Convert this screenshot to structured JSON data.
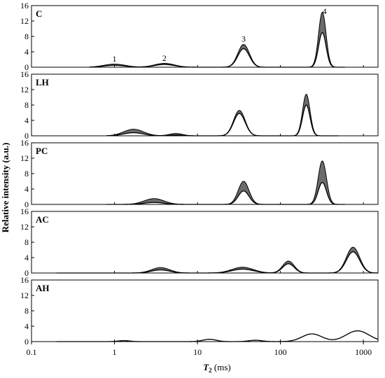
{
  "chart_data": {
    "type": "area",
    "xscale": "log",
    "xlim": [
      0.1,
      1500
    ],
    "xticks": [
      "0.1",
      "1",
      "10",
      "100",
      "1000"
    ],
    "xticks_values": [
      0.1,
      1,
      10,
      100,
      1000
    ],
    "xlabel_main": "T",
    "xlabel_sub": "2",
    "xlabel_unit": " (ms)",
    "ylabel": "Relative intensity (a.u.)",
    "ylim": [
      0,
      16
    ],
    "yticks": [
      "0",
      "4",
      "8",
      "12",
      "16"
    ],
    "fill_color": "#6b6b6b",
    "panels": [
      {
        "label": "C",
        "peaks": [
          {
            "x": 1.0,
            "lower": 0.5,
            "upper": 0.8,
            "width": 0.13
          },
          {
            "x": 4.0,
            "lower": 0.7,
            "upper": 1.0,
            "width": 0.12
          },
          {
            "x": 36,
            "lower": 4.8,
            "upper": 5.9,
            "width": 0.07
          },
          {
            "x": 320,
            "lower": 9.0,
            "upper": 14.3,
            "width": 0.045
          }
        ],
        "annotations": [
          {
            "text": "1",
            "x": 1.0,
            "y": 1.5
          },
          {
            "text": "2",
            "x": 4.0,
            "y": 1.6
          },
          {
            "text": "3",
            "x": 36,
            "y": 6.6
          },
          {
            "text": "4",
            "x": 340,
            "y": 13.8
          }
        ],
        "extent": [
          0.5,
          600
        ]
      },
      {
        "label": "LH",
        "peaks": [
          {
            "x": 1.7,
            "lower": 0.8,
            "upper": 1.7,
            "width": 0.12
          },
          {
            "x": 5.5,
            "lower": 0.2,
            "upper": 0.6,
            "width": 0.08
          },
          {
            "x": 32,
            "lower": 5.8,
            "upper": 6.6,
            "width": 0.07
          },
          {
            "x": 205,
            "lower": 8.0,
            "upper": 10.8,
            "width": 0.045
          }
        ],
        "annotations": [],
        "extent": [
          0.8,
          500
        ]
      },
      {
        "label": "PC",
        "peaks": [
          {
            "x": 3.0,
            "lower": 0.5,
            "upper": 1.5,
            "width": 0.12
          },
          {
            "x": 36,
            "lower": 3.5,
            "upper": 6.0,
            "width": 0.065
          },
          {
            "x": 320,
            "lower": 5.7,
            "upper": 11.3,
            "width": 0.05
          }
        ],
        "annotations": [],
        "extent": [
          0.8,
          600
        ]
      },
      {
        "label": "AC",
        "peaks": [
          {
            "x": 3.6,
            "lower": 0.8,
            "upper": 1.4,
            "width": 0.11
          },
          {
            "x": 35,
            "lower": 1.0,
            "upper": 1.5,
            "width": 0.13
          },
          {
            "x": 125,
            "lower": 2.4,
            "upper": 3.1,
            "width": 0.07
          },
          {
            "x": 750,
            "lower": 5.5,
            "upper": 6.7,
            "width": 0.08
          }
        ],
        "annotations": [],
        "extent": [
          0.2,
          1500
        ]
      },
      {
        "label": "AH",
        "peaks": [
          {
            "x": 1.3,
            "lower": 0.25,
            "upper": 0.25,
            "width": 0.07
          },
          {
            "x": 14,
            "lower": 0.6,
            "upper": 0.6,
            "width": 0.08
          },
          {
            "x": 50,
            "lower": 0.35,
            "upper": 0.35,
            "width": 0.08
          },
          {
            "x": 240,
            "lower": 2.0,
            "upper": 2.0,
            "width": 0.12
          },
          {
            "x": 850,
            "lower": 2.8,
            "upper": 2.8,
            "width": 0.14
          }
        ],
        "annotations": [],
        "extent": [
          0.2,
          1500
        ]
      }
    ]
  }
}
